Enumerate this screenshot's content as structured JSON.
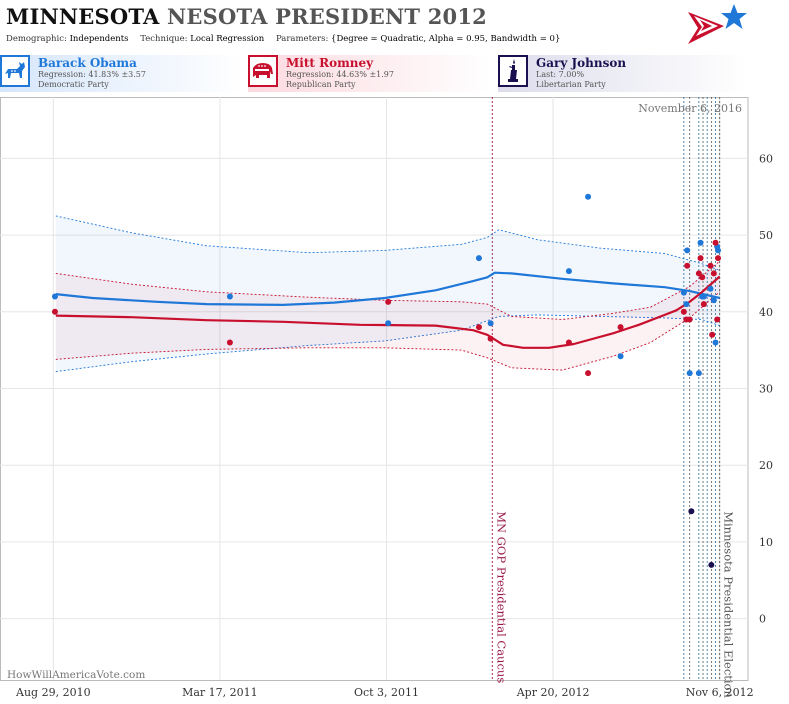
{
  "header": {
    "title_bold": "MINNESOTA",
    "title_rest": "NESOTA PRESIDENT 2012",
    "params": [
      {
        "key": "Demographic:",
        "value": "Independents"
      },
      {
        "key": "Technique:",
        "value": "Local Regression"
      },
      {
        "key": "Parameters:",
        "value": "{Degree = Quadratic, Alpha = 0.95, Bandwidth = 0}"
      }
    ],
    "logo_icon": "flag-star-logo-icon"
  },
  "candidates": [
    {
      "name": "Barack Obama",
      "line2": "Regression: 41.83% ±3.57",
      "line3": "Democratic Party",
      "icon": "donkey-icon",
      "color": "#1f78d8"
    },
    {
      "name": "Mitt Romney",
      "line2": "Regression: 44.63% ±1.97",
      "line3": "Republican Party",
      "icon": "elephant-icon",
      "color": "#c8102e"
    },
    {
      "name": "Gary Johnson",
      "line2": "Last: 7.00%",
      "line3": "Libertarian Party",
      "icon": "statue-of-liberty-icon",
      "color": "#1a1050"
    }
  ],
  "chart_data": {
    "type": "scatter",
    "x_axis": {
      "ticks": [
        "Aug 29, 2010",
        "Mar 17, 2011",
        "Oct 3, 2011",
        "Apr 20, 2012",
        "Nov 6, 2012"
      ],
      "tick_dates": [
        "2010-08-29",
        "2011-03-17",
        "2011-10-03",
        "2012-04-20",
        "2012-11-06"
      ],
      "range": [
        "2010-06-26",
        "2012-12-10"
      ]
    },
    "y_axis": {
      "ticks": [
        0,
        10,
        20,
        30,
        40,
        50,
        60
      ],
      "range": [
        -8,
        68
      ],
      "side": "right",
      "grid": true
    },
    "top_right_label": "November 6, 2016",
    "footer": "HowWillAmericaVote.com",
    "events": [
      {
        "date": "2012-02-07",
        "label": "MN GOP Presidential Caucus",
        "color": "#9a1848"
      },
      {
        "date": "2012-11-06",
        "label": "Minnesota Presidential Election",
        "color": "#555555"
      }
    ],
    "poll_dates": [
      "2012-09-24",
      "2012-10-01",
      "2012-10-12",
      "2012-10-17",
      "2012-10-22",
      "2012-10-27",
      "2012-11-01"
    ],
    "series": [
      {
        "name": "Barack Obama",
        "color": "#1f78d8",
        "trend": [
          [
            "2010-09-01",
            42.3
          ],
          [
            "2010-10-15",
            41.8
          ],
          [
            "2010-12-31",
            41.3
          ],
          [
            "2011-03-01",
            41.0
          ],
          [
            "2011-06-01",
            40.9
          ],
          [
            "2011-08-01",
            41.2
          ],
          [
            "2011-10-01",
            41.8
          ],
          [
            "2011-12-01",
            42.8
          ],
          [
            "2012-01-15",
            44.0
          ],
          [
            "2012-02-01",
            44.5
          ],
          [
            "2012-02-10",
            45.1
          ],
          [
            "2012-03-01",
            45.0
          ],
          [
            "2012-05-01",
            44.3
          ],
          [
            "2012-07-01",
            43.7
          ],
          [
            "2012-09-01",
            43.2
          ],
          [
            "2012-10-01",
            42.7
          ],
          [
            "2012-11-06",
            41.8
          ]
        ],
        "upper": [
          [
            "2010-09-01",
            52.5
          ],
          [
            "2010-12-01",
            50.3
          ],
          [
            "2011-03-01",
            48.6
          ],
          [
            "2011-07-01",
            47.7
          ],
          [
            "2011-10-01",
            48.0
          ],
          [
            "2012-01-01",
            48.8
          ],
          [
            "2012-02-01",
            49.7
          ],
          [
            "2012-02-15",
            50.7
          ],
          [
            "2012-04-01",
            49.4
          ],
          [
            "2012-06-15",
            48.3
          ],
          [
            "2012-09-01",
            47.6
          ],
          [
            "2012-10-15",
            46.3
          ],
          [
            "2012-11-06",
            45.4
          ]
        ],
        "lower": [
          [
            "2010-09-01",
            32.2
          ],
          [
            "2010-12-01",
            33.5
          ],
          [
            "2011-03-01",
            34.5
          ],
          [
            "2011-07-01",
            35.6
          ],
          [
            "2011-10-01",
            36.2
          ],
          [
            "2012-01-01",
            37.6
          ],
          [
            "2012-02-15",
            39.4
          ],
          [
            "2012-04-01",
            39.6
          ],
          [
            "2012-06-15",
            39.4
          ],
          [
            "2012-09-01",
            39.2
          ],
          [
            "2012-10-15",
            39.0
          ],
          [
            "2012-11-06",
            38.2
          ]
        ],
        "points": [
          [
            "2010-08-31",
            42
          ],
          [
            "2011-03-29",
            42
          ],
          [
            "2011-10-05",
            38.5
          ],
          [
            "2012-01-22",
            47
          ],
          [
            "2012-02-05",
            38.5
          ],
          [
            "2012-05-09",
            45.3
          ],
          [
            "2012-06-01",
            55
          ],
          [
            "2012-07-10",
            34.2
          ],
          [
            "2012-09-24",
            42.5
          ],
          [
            "2012-09-27",
            41
          ],
          [
            "2012-09-28",
            48
          ],
          [
            "2012-10-01",
            32
          ],
          [
            "2012-10-12",
            32
          ],
          [
            "2012-10-14",
            49
          ],
          [
            "2012-10-16",
            42
          ],
          [
            "2012-10-18",
            42
          ],
          [
            "2012-10-26",
            43
          ],
          [
            "2012-10-30",
            41.5
          ],
          [
            "2012-11-01",
            36
          ],
          [
            "2012-11-03",
            48.5
          ],
          [
            "2012-11-04",
            48
          ]
        ]
      },
      {
        "name": "Mitt Romney",
        "color": "#c8102e",
        "trend": [
          [
            "2010-09-01",
            39.5
          ],
          [
            "2010-12-01",
            39.3
          ],
          [
            "2011-03-01",
            38.9
          ],
          [
            "2011-06-01",
            38.7
          ],
          [
            "2011-09-01",
            38.3
          ],
          [
            "2011-12-01",
            38.2
          ],
          [
            "2012-01-15",
            37.6
          ],
          [
            "2012-02-01",
            37.0
          ],
          [
            "2012-02-20",
            35.7
          ],
          [
            "2012-03-15",
            35.3
          ],
          [
            "2012-04-15",
            35.3
          ],
          [
            "2012-05-15",
            35.8
          ],
          [
            "2012-07-01",
            37.2
          ],
          [
            "2012-08-01",
            38.3
          ],
          [
            "2012-09-01",
            39.6
          ],
          [
            "2012-09-15",
            40.2
          ],
          [
            "2012-10-01",
            41.3
          ],
          [
            "2012-10-15",
            42.5
          ],
          [
            "2012-11-06",
            44.6
          ]
        ],
        "upper": [
          [
            "2010-09-01",
            45.0
          ],
          [
            "2010-12-01",
            43.6
          ],
          [
            "2011-03-01",
            42.6
          ],
          [
            "2011-07-01",
            41.9
          ],
          [
            "2011-10-01",
            41.5
          ],
          [
            "2012-01-01",
            41.3
          ],
          [
            "2012-02-01",
            41.0
          ],
          [
            "2012-03-01",
            39.4
          ],
          [
            "2012-05-01",
            39.0
          ],
          [
            "2012-07-01",
            39.8
          ],
          [
            "2012-08-15",
            40.6
          ],
          [
            "2012-10-01",
            43.3
          ],
          [
            "2012-11-06",
            46.6
          ]
        ],
        "lower": [
          [
            "2010-09-01",
            33.8
          ],
          [
            "2010-12-01",
            34.6
          ],
          [
            "2011-03-01",
            35.1
          ],
          [
            "2011-07-01",
            35.3
          ],
          [
            "2011-10-01",
            35.3
          ],
          [
            "2012-01-01",
            35.0
          ],
          [
            "2012-02-01",
            34.0
          ],
          [
            "2012-03-01",
            32.7
          ],
          [
            "2012-05-01",
            32.4
          ],
          [
            "2012-07-01",
            34.2
          ],
          [
            "2012-08-15",
            36.0
          ],
          [
            "2012-10-01",
            39.2
          ],
          [
            "2012-11-06",
            42.6
          ]
        ],
        "points": [
          [
            "2010-08-31",
            40
          ],
          [
            "2011-03-29",
            36
          ],
          [
            "2011-10-05",
            41.3
          ],
          [
            "2012-01-22",
            38
          ],
          [
            "2012-02-05",
            36.5
          ],
          [
            "2012-05-09",
            36
          ],
          [
            "2012-06-01",
            32
          ],
          [
            "2012-07-10",
            38
          ],
          [
            "2012-09-24",
            40
          ],
          [
            "2012-09-27",
            39
          ],
          [
            "2012-09-28",
            46
          ],
          [
            "2012-10-01",
            39
          ],
          [
            "2012-10-12",
            45
          ],
          [
            "2012-10-14",
            47
          ],
          [
            "2012-10-16",
            44.5
          ],
          [
            "2012-10-18",
            41
          ],
          [
            "2012-10-26",
            46
          ],
          [
            "2012-10-28",
            37
          ],
          [
            "2012-10-30",
            45
          ],
          [
            "2012-11-01",
            49
          ],
          [
            "2012-11-03",
            39
          ],
          [
            "2012-11-04",
            47
          ]
        ]
      },
      {
        "name": "Gary Johnson",
        "color": "#1a1050",
        "points": [
          [
            "2012-10-03",
            14
          ],
          [
            "2012-10-27",
            7
          ]
        ]
      }
    ]
  }
}
